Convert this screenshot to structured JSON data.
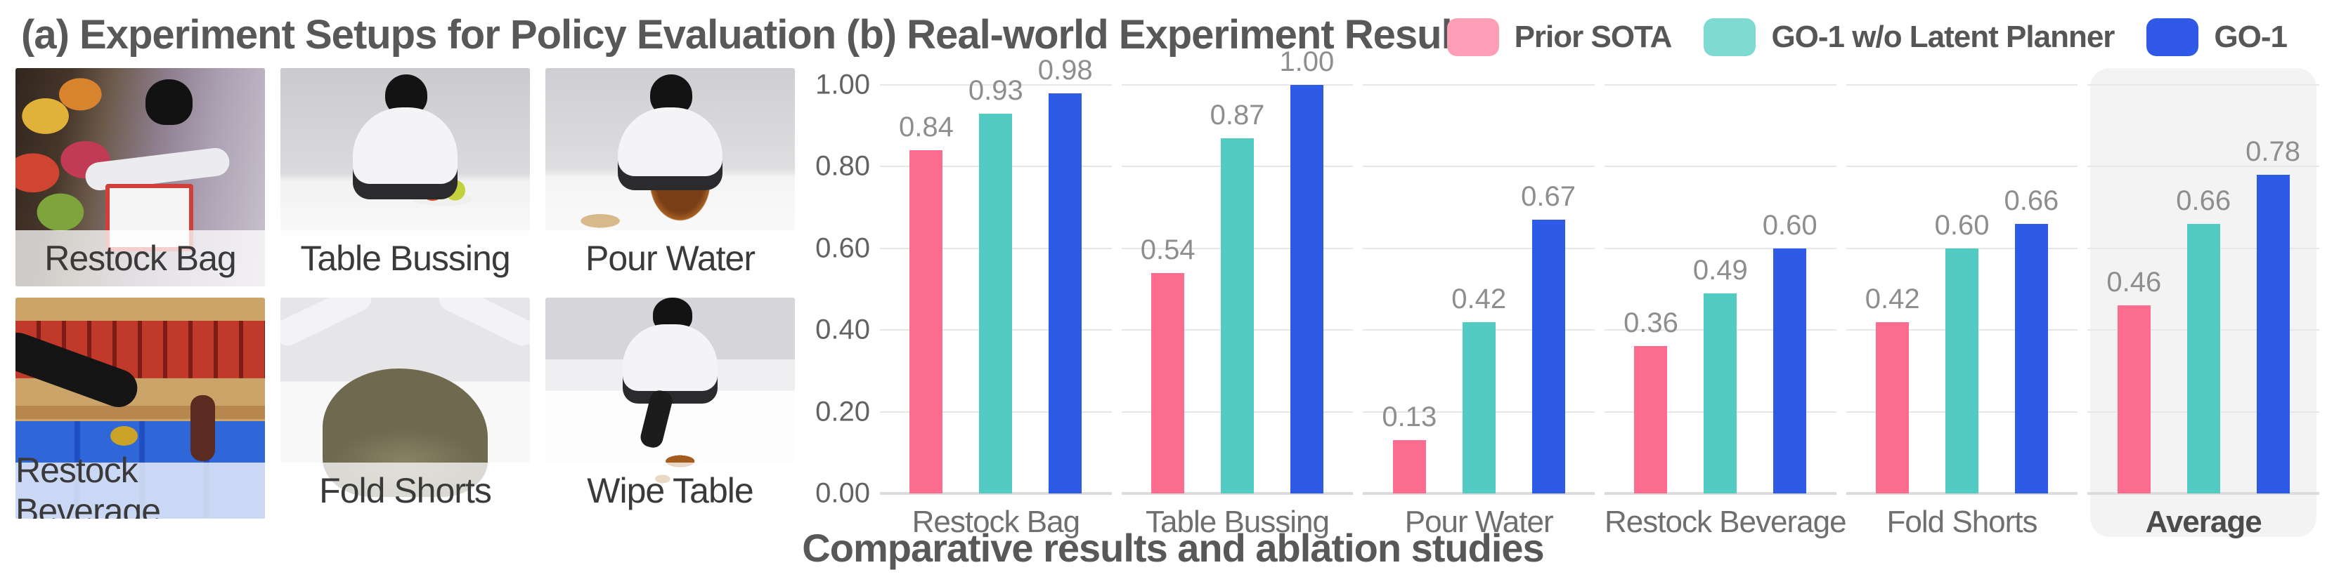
{
  "panel_a": {
    "title": "(a) Experiment Setups for Policy Evaluation",
    "setups": [
      {
        "label": "Restock Bag",
        "art": "restock-bag"
      },
      {
        "label": "Table Bussing",
        "art": "table-bussing"
      },
      {
        "label": "Pour Water",
        "art": "pour-water"
      },
      {
        "label": "Restock Beverage",
        "art": "restock-beverage"
      },
      {
        "label": "Fold Shorts",
        "art": "fold-shorts"
      },
      {
        "label": "Wipe Table",
        "art": "wipe-table"
      }
    ]
  },
  "panel_b": {
    "title": "(b) Real-world Experiment Results",
    "caption": "Comparative results and ablation studies"
  },
  "chart_data": {
    "type": "bar",
    "title": "(b) Real-world Experiment Results",
    "categories": [
      "Restock Bag",
      "Table Bussing",
      "Pour Water",
      "Restock Beverage",
      "Fold Shorts",
      "Average"
    ],
    "series": [
      {
        "name": "Prior SOTA",
        "color": "#fb6c8e",
        "legend_color": "#fc9eb6",
        "values": [
          0.84,
          0.54,
          0.13,
          0.36,
          0.42,
          0.46
        ]
      },
      {
        "name": "GO-1 w/o Latent Planner",
        "color": "#52ccc2",
        "legend_color": "#7fdad1",
        "values": [
          0.93,
          0.87,
          0.42,
          0.49,
          0.6,
          0.66
        ]
      },
      {
        "name": "GO-1",
        "color": "#2e5be6",
        "legend_color": "#3159e8",
        "values": [
          0.98,
          1.0,
          0.67,
          0.6,
          0.66,
          0.78
        ]
      }
    ],
    "xlabel": "",
    "ylabel": "",
    "ylim": [
      0.0,
      1.0
    ],
    "yticks": [
      "0.00",
      "0.20",
      "0.40",
      "0.60",
      "0.80",
      "1.00"
    ],
    "value_labels": true,
    "value_label_color": "#8e8e8e",
    "grid": "horizontal",
    "legend_position": "top-right",
    "highlight_category": "Average",
    "highlight_color": "#f3f3f4"
  }
}
